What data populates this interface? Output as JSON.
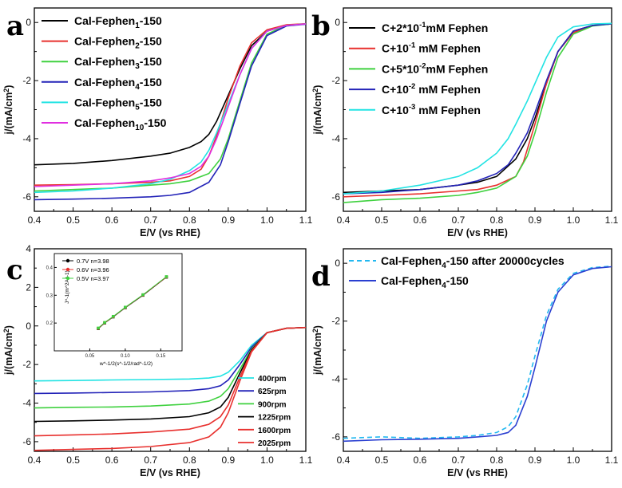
{
  "xlabel": "E/V (vs RHE)",
  "ylabel": "j/(mA/cm²)",
  "panel_letters": [
    "a",
    "b",
    "c",
    "d"
  ],
  "panels": {
    "a": {
      "legend": [
        {
          "base": "Cal-Fephen",
          "sub": "1",
          "tail": "-150",
          "color": "#000000",
          "style": "solid"
        },
        {
          "base": "Cal-Fephen",
          "sub": "2",
          "tail": "-150",
          "color": "#e8302e",
          "style": "solid"
        },
        {
          "base": "Cal-Fephen",
          "sub": "3",
          "tail": "-150",
          "color": "#3fd13f",
          "style": "solid"
        },
        {
          "base": "Cal-Fephen",
          "sub": "4",
          "tail": "-150",
          "color": "#2323b8",
          "style": "solid"
        },
        {
          "base": "Cal-Fephen",
          "sub": "5",
          "tail": "-150",
          "color": "#22e3e3",
          "style": "solid"
        },
        {
          "base": "Cal-Fephen",
          "sub": "10",
          "tail": "-150",
          "color": "#e02fe0",
          "style": "solid"
        }
      ]
    },
    "b": {
      "legend": [
        {
          "base": "C+2*10",
          "sup": "-1",
          "tail": "mM Fephen",
          "color": "#000000",
          "style": "solid"
        },
        {
          "base": "C+10",
          "sup": "-1",
          "tail": "  mM Fephen",
          "color": "#e8302e",
          "style": "solid"
        },
        {
          "base": "C+5*10",
          "sup": "-2",
          "tail": "mM Fephen",
          "color": "#3fd13f",
          "style": "solid"
        },
        {
          "base": "C+10",
          "sup": "-2",
          "tail": "  mM Fephen",
          "color": "#2323b8",
          "style": "solid"
        },
        {
          "base": "C+10",
          "sup": "-3",
          "tail": "  mM Fephen",
          "color": "#22e3e3",
          "style": "solid"
        }
      ]
    },
    "c": {
      "legend": [
        {
          "label": "400rpm",
          "color": "#22e3e3"
        },
        {
          "label": "625rpm",
          "color": "#2323b8"
        },
        {
          "label": "900rpm",
          "color": "#3fd13f"
        },
        {
          "label": "1225rpm",
          "color": "#000000"
        },
        {
          "label": "1600rpm",
          "color": "#e8302e"
        },
        {
          "label": "2025rpm",
          "color": "#e8302e"
        }
      ],
      "inset": {
        "xlabel": "w^-1/2(s^-1/2/rad^-1/2)",
        "ylabel": "J^-1(m^2A^-1)",
        "xticks": [
          "0.05",
          "0.10",
          "0.15"
        ],
        "yticks": [
          "0.2",
          "0.3",
          "0.4"
        ],
        "legend": [
          {
            "label": "0.7V  n=3.98",
            "color": "#000000"
          },
          {
            "label": "0.6V  n=3.96",
            "color": "#e8302e"
          },
          {
            "label": "0.5V  n=3.97",
            "color": "#3fd13f"
          }
        ]
      }
    },
    "d": {
      "legend": [
        {
          "base": "Cal-Fephen",
          "sub": "4",
          "tail": "-150 after 20000cycles",
          "color": "#22b8f0",
          "style": "dashed"
        },
        {
          "base": "Cal-Fephen",
          "sub": "4",
          "tail": "-150",
          "color": "#2a3fd1",
          "style": "solid"
        }
      ]
    }
  },
  "chart_data": [
    {
      "panel": "a",
      "type": "line",
      "xlabel": "E/V (vs RHE)",
      "ylabel": "j/(mA/cm²)",
      "xlim": [
        0.4,
        1.1
      ],
      "ylim": [
        -6.5,
        0.5
      ],
      "xticks": [
        0.4,
        0.5,
        0.6,
        0.7,
        0.8,
        0.9,
        1.0,
        1.1
      ],
      "yticks": [
        -6,
        -4,
        -2,
        0
      ],
      "series": [
        {
          "name": "Cal-Fephen1-150",
          "color": "#000000",
          "x": [
            0.4,
            0.5,
            0.6,
            0.7,
            0.75,
            0.8,
            0.83,
            0.85,
            0.87,
            0.9,
            0.93,
            0.96,
            1.0,
            1.05,
            1.1
          ],
          "y": [
            -4.9,
            -4.85,
            -4.75,
            -4.6,
            -4.5,
            -4.3,
            -4.1,
            -3.85,
            -3.4,
            -2.5,
            -1.6,
            -0.8,
            -0.3,
            -0.1,
            -0.05
          ]
        },
        {
          "name": "Cal-Fephen2-150",
          "color": "#e8302e",
          "x": [
            0.4,
            0.5,
            0.6,
            0.7,
            0.75,
            0.8,
            0.83,
            0.85,
            0.87,
            0.9,
            0.93,
            0.96,
            1.0,
            1.05,
            1.1
          ],
          "y": [
            -5.6,
            -5.58,
            -5.55,
            -5.5,
            -5.45,
            -5.3,
            -5.05,
            -4.6,
            -3.9,
            -2.6,
            -1.5,
            -0.7,
            -0.25,
            -0.08,
            -0.04
          ]
        },
        {
          "name": "Cal-Fephen3-150",
          "color": "#3fd13f",
          "x": [
            0.4,
            0.5,
            0.6,
            0.7,
            0.75,
            0.8,
            0.85,
            0.88,
            0.9,
            0.93,
            0.96,
            1.0,
            1.05,
            1.1
          ],
          "y": [
            -5.8,
            -5.75,
            -5.7,
            -5.6,
            -5.55,
            -5.45,
            -5.2,
            -4.7,
            -4.0,
            -2.7,
            -1.4,
            -0.4,
            -0.1,
            -0.05
          ]
        },
        {
          "name": "Cal-Fephen4-150",
          "color": "#2323b8",
          "x": [
            0.4,
            0.5,
            0.6,
            0.7,
            0.75,
            0.8,
            0.85,
            0.88,
            0.9,
            0.93,
            0.96,
            1.0,
            1.05,
            1.1
          ],
          "y": [
            -6.1,
            -6.08,
            -6.05,
            -6.0,
            -5.95,
            -5.85,
            -5.5,
            -4.9,
            -4.1,
            -2.8,
            -1.5,
            -0.45,
            -0.12,
            -0.06
          ]
        },
        {
          "name": "Cal-Fephen5-150",
          "color": "#22e3e3",
          "x": [
            0.4,
            0.5,
            0.6,
            0.7,
            0.75,
            0.8,
            0.83,
            0.85,
            0.87,
            0.9,
            0.93,
            0.96,
            1.0,
            1.05,
            1.1
          ],
          "y": [
            -5.85,
            -5.8,
            -5.7,
            -5.55,
            -5.4,
            -5.1,
            -4.8,
            -4.4,
            -3.8,
            -2.8,
            -1.8,
            -0.9,
            -0.3,
            -0.1,
            -0.05
          ]
        },
        {
          "name": "Cal-Fephen10-150",
          "color": "#e02fe0",
          "x": [
            0.4,
            0.5,
            0.6,
            0.7,
            0.75,
            0.8,
            0.83,
            0.85,
            0.87,
            0.9,
            0.93,
            0.96,
            1.0,
            1.05,
            1.1
          ],
          "y": [
            -5.65,
            -5.6,
            -5.55,
            -5.45,
            -5.35,
            -5.2,
            -4.95,
            -4.6,
            -4.0,
            -2.9,
            -1.8,
            -0.9,
            -0.3,
            -0.1,
            -0.05
          ]
        }
      ]
    },
    {
      "panel": "b",
      "type": "line",
      "xlabel": "E/V (vs RHE)",
      "ylabel": "j/(mA/cm²)",
      "xlim": [
        0.4,
        1.1
      ],
      "ylim": [
        -6.5,
        0.5
      ],
      "xticks": [
        0.4,
        0.5,
        0.6,
        0.7,
        0.8,
        0.9,
        1.0,
        1.1
      ],
      "yticks": [
        -6,
        -4,
        -2,
        0
      ],
      "series": [
        {
          "name": "C+2*10^-1mM Fephen",
          "color": "#000000",
          "x": [
            0.4,
            0.5,
            0.6,
            0.7,
            0.75,
            0.8,
            0.85,
            0.88,
            0.9,
            0.93,
            0.96,
            1.0,
            1.05,
            1.1
          ],
          "y": [
            -5.85,
            -5.8,
            -5.75,
            -5.6,
            -5.5,
            -5.3,
            -4.7,
            -4.0,
            -3.3,
            -2.1,
            -1.0,
            -0.3,
            -0.1,
            -0.05
          ]
        },
        {
          "name": "C+10^-1 mM Fephen",
          "color": "#e8302e",
          "x": [
            0.4,
            0.5,
            0.6,
            0.7,
            0.75,
            0.8,
            0.85,
            0.87,
            0.9,
            0.93,
            0.96,
            1.0,
            1.05,
            1.1
          ],
          "y": [
            -6.0,
            -5.95,
            -5.9,
            -5.8,
            -5.75,
            -5.6,
            -5.3,
            -4.8,
            -3.5,
            -2.1,
            -1.0,
            -0.35,
            -0.1,
            -0.05
          ]
        },
        {
          "name": "C+5*10^-2mM Fephen",
          "color": "#3fd13f",
          "x": [
            0.4,
            0.5,
            0.6,
            0.7,
            0.75,
            0.8,
            0.85,
            0.88,
            0.9,
            0.93,
            0.96,
            1.0,
            1.05,
            1.1
          ],
          "y": [
            -6.2,
            -6.1,
            -6.05,
            -5.95,
            -5.85,
            -5.7,
            -5.3,
            -4.6,
            -3.8,
            -2.4,
            -1.2,
            -0.4,
            -0.12,
            -0.05
          ]
        },
        {
          "name": "C+10^-2 mM Fephen",
          "color": "#2323b8",
          "x": [
            0.4,
            0.5,
            0.6,
            0.7,
            0.75,
            0.8,
            0.83,
            0.85,
            0.88,
            0.9,
            0.93,
            0.96,
            1.0,
            1.05,
            1.1
          ],
          "y": [
            -5.9,
            -5.85,
            -5.75,
            -5.6,
            -5.45,
            -5.2,
            -4.9,
            -4.5,
            -3.8,
            -3.1,
            -2.0,
            -1.0,
            -0.3,
            -0.1,
            -0.05
          ]
        },
        {
          "name": "C+10^-3 mM Fephen",
          "color": "#22e3e3",
          "x": [
            0.4,
            0.5,
            0.6,
            0.7,
            0.75,
            0.8,
            0.83,
            0.85,
            0.88,
            0.9,
            0.93,
            0.96,
            1.0,
            1.05,
            1.1
          ],
          "y": [
            -5.9,
            -5.8,
            -5.6,
            -5.3,
            -5.0,
            -4.5,
            -4.0,
            -3.5,
            -2.7,
            -2.1,
            -1.2,
            -0.5,
            -0.15,
            -0.05,
            -0.03
          ]
        }
      ]
    },
    {
      "panel": "c",
      "type": "line",
      "xlabel": "E/V (vs RHE)",
      "ylabel": "j/(mA/cm²)",
      "xlim": [
        0.4,
        1.1
      ],
      "ylim": [
        -6.5,
        4.0
      ],
      "xticks": [
        0.4,
        0.5,
        0.6,
        0.7,
        0.8,
        0.9,
        1.0,
        1.1
      ],
      "yticks": [
        -6,
        -4,
        -2,
        0,
        2,
        4
      ],
      "series": [
        {
          "name": "400rpm",
          "color": "#22e3e3",
          "x": [
            0.4,
            0.5,
            0.6,
            0.7,
            0.8,
            0.85,
            0.88,
            0.9,
            0.93,
            0.96,
            1.0,
            1.05,
            1.1
          ],
          "y": [
            -2.85,
            -2.83,
            -2.8,
            -2.78,
            -2.75,
            -2.7,
            -2.6,
            -2.4,
            -1.8,
            -1.0,
            -0.35,
            -0.12,
            -0.08
          ]
        },
        {
          "name": "625rpm",
          "color": "#2323b8",
          "x": [
            0.4,
            0.5,
            0.6,
            0.7,
            0.8,
            0.85,
            0.88,
            0.9,
            0.93,
            0.96,
            1.0,
            1.05,
            1.1
          ],
          "y": [
            -3.5,
            -3.48,
            -3.45,
            -3.42,
            -3.35,
            -3.25,
            -3.1,
            -2.8,
            -2.0,
            -1.1,
            -0.35,
            -0.12,
            -0.08
          ]
        },
        {
          "name": "900rpm",
          "color": "#3fd13f",
          "x": [
            0.4,
            0.5,
            0.6,
            0.7,
            0.8,
            0.85,
            0.88,
            0.9,
            0.93,
            0.96,
            1.0,
            1.05,
            1.1
          ],
          "y": [
            -4.25,
            -4.22,
            -4.2,
            -4.15,
            -4.05,
            -3.9,
            -3.65,
            -3.25,
            -2.25,
            -1.2,
            -0.35,
            -0.12,
            -0.08
          ]
        },
        {
          "name": "1225rpm",
          "color": "#000000",
          "x": [
            0.4,
            0.5,
            0.6,
            0.7,
            0.8,
            0.85,
            0.88,
            0.9,
            0.93,
            0.96,
            1.0,
            1.05,
            1.1
          ],
          "y": [
            -4.95,
            -4.92,
            -4.88,
            -4.82,
            -4.7,
            -4.5,
            -4.2,
            -3.7,
            -2.45,
            -1.25,
            -0.35,
            -0.12,
            -0.08
          ]
        },
        {
          "name": "1600rpm",
          "color": "#e8302e",
          "x": [
            0.4,
            0.5,
            0.6,
            0.7,
            0.8,
            0.85,
            0.88,
            0.9,
            0.93,
            0.96,
            1.0,
            1.05,
            1.1
          ],
          "y": [
            -5.7,
            -5.65,
            -5.6,
            -5.5,
            -5.35,
            -5.1,
            -4.7,
            -4.1,
            -2.65,
            -1.3,
            -0.35,
            -0.12,
            -0.08
          ]
        },
        {
          "name": "2025rpm",
          "color": "#e8302e",
          "x": [
            0.4,
            0.5,
            0.6,
            0.7,
            0.8,
            0.85,
            0.88,
            0.9,
            0.93,
            0.96,
            1.0,
            1.05,
            1.1
          ],
          "y": [
            -6.45,
            -6.4,
            -6.35,
            -6.25,
            -6.05,
            -5.75,
            -5.25,
            -4.5,
            -2.85,
            -1.35,
            -0.35,
            -0.12,
            -0.08
          ]
        }
      ],
      "inset": {
        "type": "line",
        "xlim": [
          0.0,
          0.18
        ],
        "ylim": [
          0.1,
          0.45
        ],
        "series": [
          {
            "name": "0.7V n=3.98",
            "color": "#000000",
            "x": [
              0.062,
              0.071,
              0.083,
              0.1,
              0.125,
              0.158
            ],
            "y": [
              0.18,
              0.2,
              0.222,
              0.255,
              0.3,
              0.365
            ]
          },
          {
            "name": "0.6V n=3.96",
            "color": "#e8302e",
            "x": [
              0.062,
              0.071,
              0.083,
              0.1,
              0.125,
              0.158
            ],
            "y": [
              0.181,
              0.201,
              0.223,
              0.256,
              0.301,
              0.366
            ]
          },
          {
            "name": "0.5V n=3.97",
            "color": "#3fd13f",
            "x": [
              0.062,
              0.071,
              0.083,
              0.1,
              0.125,
              0.158
            ],
            "y": [
              0.182,
              0.202,
              0.224,
              0.257,
              0.302,
              0.367
            ]
          }
        ]
      }
    },
    {
      "panel": "d",
      "type": "line",
      "xlabel": "E/V (vs RHE)",
      "ylabel": "j/(mA/cm²)",
      "xlim": [
        0.4,
        1.1
      ],
      "ylim": [
        -6.5,
        0.5
      ],
      "xticks": [
        0.4,
        0.5,
        0.6,
        0.7,
        0.8,
        0.9,
        1.0,
        1.1
      ],
      "yticks": [
        -6,
        -4,
        -2,
        0
      ],
      "series": [
        {
          "name": "Cal-Fephen4-150 after 20000cycles",
          "color": "#22b8f0",
          "style": "dashed",
          "x": [
            0.4,
            0.5,
            0.6,
            0.7,
            0.75,
            0.8,
            0.83,
            0.85,
            0.88,
            0.9,
            0.93,
            0.96,
            1.0,
            1.05,
            1.1
          ],
          "y": [
            -6.05,
            -6.0,
            -6.05,
            -6.0,
            -5.95,
            -5.85,
            -5.65,
            -5.3,
            -4.2,
            -3.2,
            -1.8,
            -0.9,
            -0.35,
            -0.15,
            -0.1
          ]
        },
        {
          "name": "Cal-Fephen4-150",
          "color": "#2a3fd1",
          "style": "solid",
          "x": [
            0.4,
            0.5,
            0.6,
            0.7,
            0.75,
            0.8,
            0.83,
            0.85,
            0.88,
            0.9,
            0.93,
            0.96,
            1.0,
            1.05,
            1.1
          ],
          "y": [
            -6.15,
            -6.1,
            -6.08,
            -6.05,
            -6.0,
            -5.95,
            -5.85,
            -5.6,
            -4.6,
            -3.6,
            -2.0,
            -1.0,
            -0.4,
            -0.18,
            -0.12
          ]
        }
      ]
    }
  ]
}
